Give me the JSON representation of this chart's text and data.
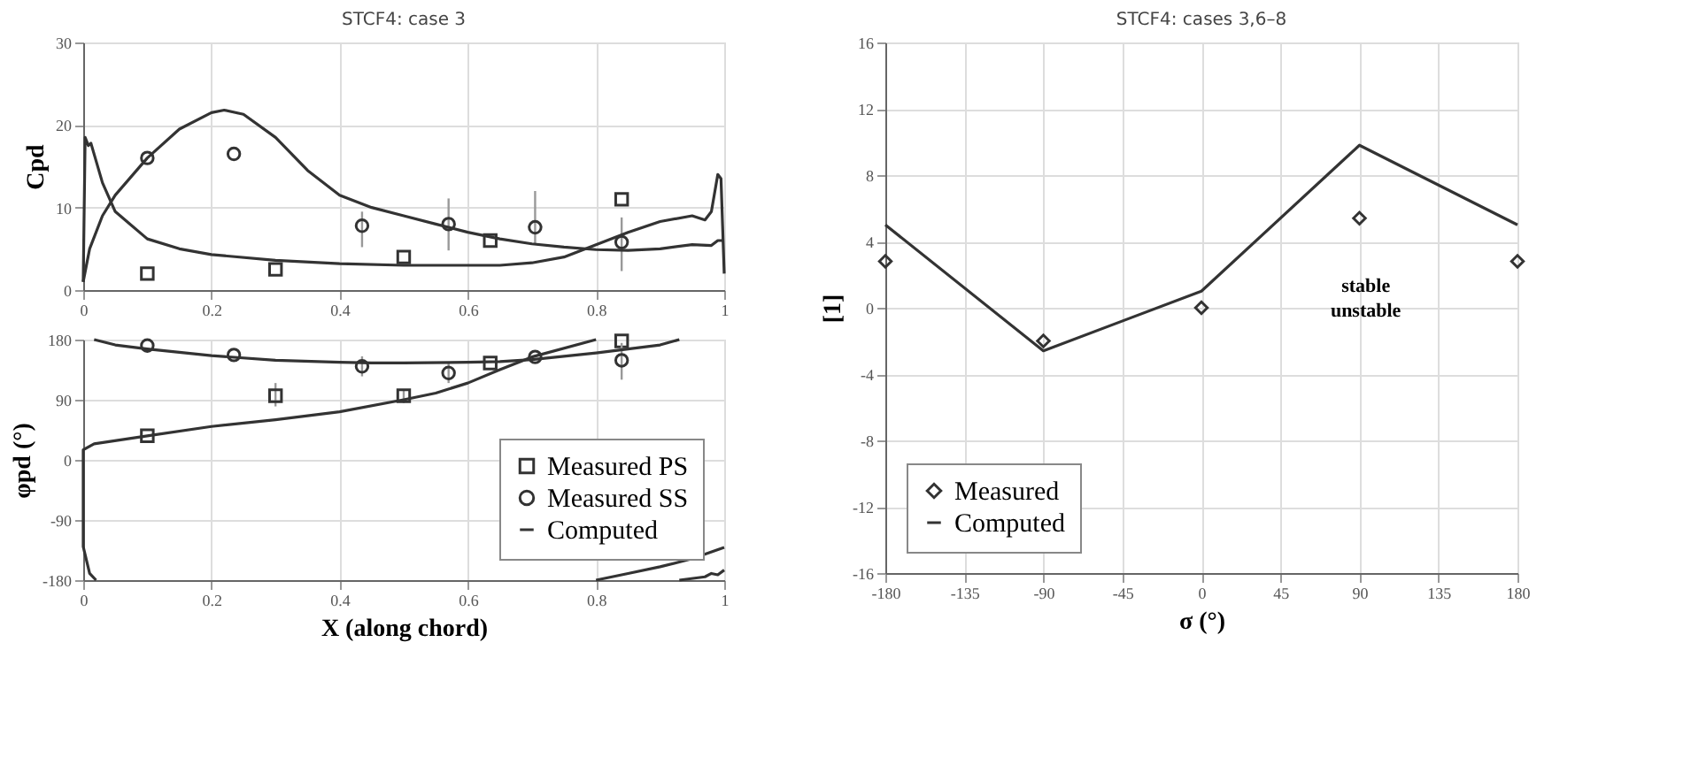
{
  "chart_data": [
    {
      "type": "scatter",
      "title": "STCF4: case 3",
      "ylabel": "Cpd",
      "xlim": [
        0,
        1
      ],
      "xticks": [
        0,
        0.2,
        0.4,
        0.6,
        0.8,
        1
      ],
      "ylim": [
        0,
        30
      ],
      "yticks": [
        0,
        10,
        20,
        30
      ],
      "grid": true,
      "series": [
        {
          "marker": "square",
          "color": "#333333",
          "x": [
            0.1,
            0.3,
            0.5,
            0.635,
            0.84
          ],
          "values": [
            2,
            2.5,
            4,
            6,
            11
          ]
        },
        {
          "marker": "circle",
          "color": "#333333",
          "x": [
            0.1,
            0.235,
            0.435,
            0.57,
            0.705,
            0.84
          ],
          "values": [
            16,
            16.5,
            7.8,
            8,
            7.6,
            5.8
          ],
          "errors": [
            null,
            null,
            [
              5.2,
              9.5
            ],
            [
              4.8,
              11.1
            ],
            [
              5.5,
              12
            ],
            [
              2.3,
              8.8
            ]
          ]
        },
        {
          "type": "line",
          "color": "#333333",
          "x": [
            0,
            0.01,
            0.03,
            0.05,
            0.1,
            0.15,
            0.2,
            0.22,
            0.25,
            0.3,
            0.35,
            0.4,
            0.45,
            0.5,
            0.55,
            0.6,
            0.65,
            0.7,
            0.75,
            0.8,
            0.85,
            0.9,
            0.95,
            0.98,
            0.99,
            1
          ],
          "values": [
            1,
            5,
            9,
            11.5,
            16,
            19.5,
            21.5,
            21.8,
            21.3,
            18.5,
            14.5,
            11.5,
            10,
            9,
            8,
            7,
            6.2,
            5.6,
            5.2,
            4.9,
            4.8,
            5,
            5.5,
            5.4,
            6,
            6
          ]
        },
        {
          "type": "line",
          "color": "#333333",
          "x": [
            0,
            0.003,
            0.008,
            0.012,
            0.03,
            0.05,
            0.1,
            0.15,
            0.2,
            0.3,
            0.4,
            0.5,
            0.6,
            0.65,
            0.7,
            0.75,
            0.8,
            0.85,
            0.9,
            0.95,
            0.97,
            0.98,
            0.99,
            0.995,
            1
          ],
          "values": [
            1,
            18.5,
            17.5,
            17.8,
            13,
            9.5,
            6.2,
            5,
            4.3,
            3.6,
            3.2,
            3,
            3,
            3,
            3.3,
            4,
            5.5,
            7,
            8.3,
            9,
            8.5,
            9.5,
            14,
            13.5,
            2
          ]
        }
      ]
    },
    {
      "type": "scatter",
      "xlabel": "X (along chord)",
      "ylabel": "φpd (°)",
      "xlim": [
        0,
        1
      ],
      "xticks": [
        0,
        0.2,
        0.4,
        0.6,
        0.8,
        1
      ],
      "ylim": [
        -180,
        180
      ],
      "yticks": [
        -180,
        -90,
        0,
        90,
        180
      ],
      "grid": true,
      "legend": "bottom right",
      "series": [
        {
          "name": "Measured PS",
          "marker": "square",
          "color": "#333333",
          "x": [
            0.1,
            0.3,
            0.5,
            0.635,
            0.84
          ],
          "values": [
            36,
            96,
            96,
            145,
            178
          ],
          "errors": [
            null,
            [
              80,
              115
            ],
            [
              85,
              105
            ],
            null,
            null
          ]
        },
        {
          "name": "Measured SS",
          "marker": "circle",
          "color": "#333333",
          "x": [
            0.1,
            0.235,
            0.435,
            0.57,
            0.705,
            0.84
          ],
          "values": [
            171,
            157,
            140,
            130,
            154,
            149
          ],
          "errors": [
            null,
            null,
            [
              125,
              155
            ],
            [
              115,
              145
            ],
            null,
            [
              120,
              175
            ]
          ]
        },
        {
          "name": "Computed",
          "type": "line",
          "color": "#333333",
          "x": [
            0.02,
            0.01,
            0,
            0,
            0.017,
            0.1,
            0.2,
            0.3,
            0.4,
            0.5,
            0.55,
            0.6,
            0.65,
            0.7,
            0.8
          ],
          "values": [
            -180,
            -170,
            -130,
            15,
            24,
            36,
            50,
            60,
            72,
            90,
            100,
            115,
            135,
            154,
            180
          ]
        },
        {
          "type": "line",
          "color": "#333333",
          "x": [
            0.8,
            0.85,
            0.9,
            0.95,
            1
          ],
          "values": [
            -180,
            -170,
            -160,
            -148,
            -131
          ]
        },
        {
          "type": "line",
          "color": "#333333",
          "x": [
            0.017,
            0.05,
            0.1,
            0.2,
            0.3,
            0.4,
            0.45,
            0.5,
            0.6,
            0.65,
            0.7,
            0.8,
            0.9,
            0.93
          ],
          "values": [
            180,
            172,
            166,
            156,
            149,
            146,
            145,
            145,
            146,
            147,
            150,
            160,
            172,
            180
          ]
        },
        {
          "type": "line",
          "color": "#333333",
          "x": [
            0.93,
            0.97,
            0.98,
            0.99,
            1
          ],
          "values": [
            -180,
            -175,
            -170,
            -172,
            -165
          ]
        }
      ]
    },
    {
      "type": "line",
      "title": "STCF4: cases 3,6–8",
      "xlabel": "σ (°)",
      "ylabel": "[1]",
      "xlim": [
        -180,
        180
      ],
      "xticks": [
        -180,
        -135,
        -90,
        -45,
        0,
        45,
        90,
        135,
        180
      ],
      "ylim": [
        -16,
        16
      ],
      "yticks": [
        -16,
        -12,
        -8,
        -4,
        0,
        4,
        8,
        12,
        16
      ],
      "grid": true,
      "legend": "bottom left",
      "annotations": [
        "stable",
        "unstable"
      ],
      "x": [
        -180,
        -90,
        0,
        90,
        180
      ],
      "series": [
        {
          "name": "Measured",
          "type": "scatter",
          "marker": "diamond",
          "color": "#333333",
          "values": [
            2.8,
            -2,
            0,
            5.4,
            2.8
          ]
        },
        {
          "name": "Computed",
          "color": "#333333",
          "values": [
            5,
            -2.6,
            1,
            9.8,
            5
          ]
        }
      ]
    }
  ]
}
